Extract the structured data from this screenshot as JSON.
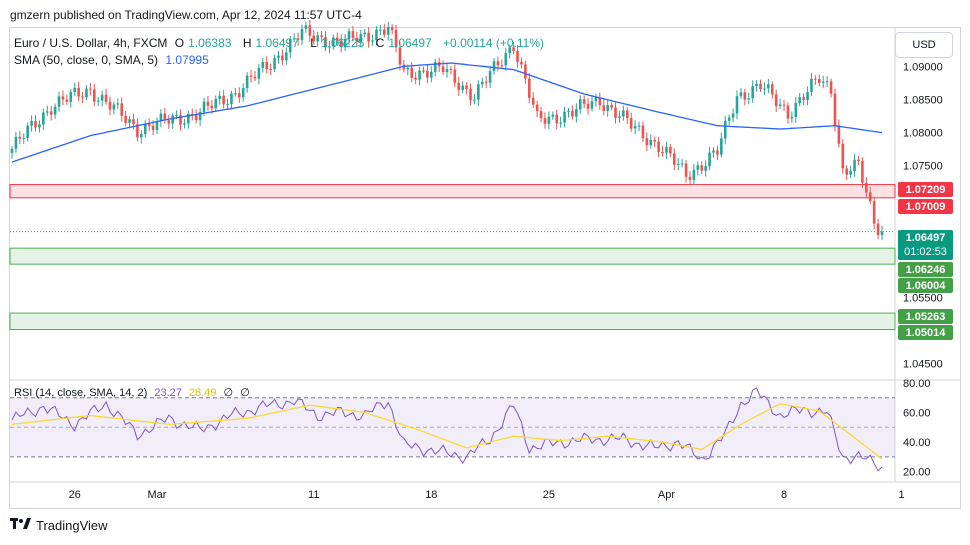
{
  "header": {
    "publisher": "gmzern published on TradingView.com, Apr 12, 2024 11:57 UTC-4"
  },
  "legend": {
    "symbol": "Euro / U.S. Dollar, 4h, FXCM",
    "o_label": "O",
    "o_value": "1.06383",
    "h_label": "H",
    "h_value": "1.06497",
    "l_label": "L",
    "l_value": "1.06225",
    "c_label": "C",
    "c_value": "1.06497",
    "change": "+0.00114 (+0.11%)",
    "sma_label": "SMA (50, close, 0, SMA, 5)",
    "sma_value": "1.07995",
    "rsi_label": "RSI (14, close, SMA, 14, 2)",
    "rsi_value": "23.27",
    "rsi_ma_value": "28.49",
    "rsi_extra1": "∅",
    "rsi_extra2": "∅"
  },
  "currency_button": "USD",
  "price_labels": {
    "current_price": "1.06497",
    "countdown": "01:02:53",
    "zone_red_top": "1.07209",
    "zone_red_bottom": "1.07009",
    "zone_green1_top": "1.06246",
    "zone_green1_bottom": "1.06004",
    "zone_green2_top": "1.05263",
    "zone_green2_bottom": "1.05014"
  },
  "colors": {
    "up": "#26a69a",
    "down": "#ef5350",
    "sma": "#2962ff",
    "rsi": "#7e57c2",
    "rsi_ma": "#fdd835",
    "zone_red": "#f23645",
    "zone_green": "#4caf50"
  },
  "footer": {
    "brand": "TradingView",
    "logo_icon": "tradingview-logo-icon"
  },
  "chart_data": [
    {
      "type": "candlestick",
      "title": "Euro / U.S. Dollar, 4h, FXCM",
      "y_axis_ticks": [
        "1.09000",
        "1.08500",
        "1.08000",
        "1.07500",
        "1.05500",
        "1.04500"
      ],
      "ylim": [
        1.0428,
        1.0958
      ],
      "x_tick_labels": [
        "26",
        "Mar",
        "11",
        "18",
        "25",
        "Apr",
        "8",
        "1"
      ],
      "x_tick_index": [
        16,
        37,
        77,
        107,
        137,
        167,
        197,
        227
      ],
      "n_bars": 223,
      "key_closes": [
        {
          "i": 0,
          "c": 1.0775
        },
        {
          "i": 10,
          "c": 1.084
        },
        {
          "i": 20,
          "c": 1.0865
        },
        {
          "i": 32,
          "c": 1.0805
        },
        {
          "i": 48,
          "c": 1.083
        },
        {
          "i": 57,
          "c": 1.086
        },
        {
          "i": 66,
          "c": 1.0905
        },
        {
          "i": 74,
          "c": 1.095
        },
        {
          "i": 84,
          "c": 1.0935
        },
        {
          "i": 96,
          "c": 1.0958
        },
        {
          "i": 100,
          "c": 1.089
        },
        {
          "i": 110,
          "c": 1.0895
        },
        {
          "i": 118,
          "c": 1.0855
        },
        {
          "i": 128,
          "c": 1.0935
        },
        {
          "i": 134,
          "c": 1.0818
        },
        {
          "i": 143,
          "c": 1.083
        },
        {
          "i": 150,
          "c": 1.085
        },
        {
          "i": 158,
          "c": 1.081
        },
        {
          "i": 165,
          "c": 1.078
        },
        {
          "i": 172,
          "c": 1.0735
        },
        {
          "i": 180,
          "c": 1.077
        },
        {
          "i": 185,
          "c": 1.0855
        },
        {
          "i": 191,
          "c": 1.087
        },
        {
          "i": 198,
          "c": 1.083
        },
        {
          "i": 206,
          "c": 1.088
        },
        {
          "i": 209,
          "c": 1.0865
        },
        {
          "i": 212,
          "c": 1.0742
        },
        {
          "i": 216,
          "c": 1.0748
        },
        {
          "i": 220,
          "c": 1.0665
        },
        {
          "i": 222,
          "c": 1.06497
        }
      ],
      "sma": [
        {
          "i": 0,
          "v": 1.0755
        },
        {
          "i": 20,
          "v": 1.0795
        },
        {
          "i": 40,
          "v": 1.082
        },
        {
          "i": 60,
          "v": 1.084
        },
        {
          "i": 80,
          "v": 1.087
        },
        {
          "i": 100,
          "v": 1.09
        },
        {
          "i": 112,
          "v": 1.0905
        },
        {
          "i": 128,
          "v": 1.0895
        },
        {
          "i": 146,
          "v": 1.0858
        },
        {
          "i": 164,
          "v": 1.0832
        },
        {
          "i": 180,
          "v": 1.081
        },
        {
          "i": 196,
          "v": 1.0805
        },
        {
          "i": 210,
          "v": 1.081
        },
        {
          "i": 222,
          "v": 1.07995
        }
      ],
      "zones": [
        {
          "name": "resistance",
          "color": "red",
          "top": 1.07209,
          "bottom": 1.07009
        },
        {
          "name": "support-1",
          "color": "green",
          "top": 1.06246,
          "bottom": 1.06004
        },
        {
          "name": "support-2",
          "color": "green",
          "top": 1.05263,
          "bottom": 1.05014
        }
      ],
      "last_price": 1.06497
    },
    {
      "type": "line",
      "title": "RSI (14, close, SMA, 14, 2)",
      "y_axis_ticks": [
        "80.00",
        "60.00",
        "40.00",
        "20.00"
      ],
      "ylim": [
        13,
        82
      ],
      "upper_band": 70,
      "middle_band": 50,
      "lower_band": 30,
      "series": [
        {
          "name": "RSI",
          "points": [
            {
              "i": 0,
              "v": 55
            },
            {
              "i": 8,
              "v": 64
            },
            {
              "i": 16,
              "v": 52
            },
            {
              "i": 24,
              "v": 66
            },
            {
              "i": 32,
              "v": 45
            },
            {
              "i": 40,
              "v": 56
            },
            {
              "i": 48,
              "v": 48
            },
            {
              "i": 56,
              "v": 58
            },
            {
              "i": 64,
              "v": 64
            },
            {
              "i": 72,
              "v": 68
            },
            {
              "i": 78,
              "v": 58
            },
            {
              "i": 84,
              "v": 60
            },
            {
              "i": 90,
              "v": 58
            },
            {
              "i": 96,
              "v": 68
            },
            {
              "i": 100,
              "v": 38
            },
            {
              "i": 108,
              "v": 34
            },
            {
              "i": 116,
              "v": 30
            },
            {
              "i": 122,
              "v": 42
            },
            {
              "i": 128,
              "v": 65
            },
            {
              "i": 132,
              "v": 36
            },
            {
              "i": 140,
              "v": 40
            },
            {
              "i": 148,
              "v": 42
            },
            {
              "i": 156,
              "v": 42
            },
            {
              "i": 164,
              "v": 36
            },
            {
              "i": 170,
              "v": 40
            },
            {
              "i": 176,
              "v": 28
            },
            {
              "i": 182,
              "v": 45
            },
            {
              "i": 186,
              "v": 66
            },
            {
              "i": 190,
              "v": 74
            },
            {
              "i": 196,
              "v": 58
            },
            {
              "i": 202,
              "v": 62
            },
            {
              "i": 208,
              "v": 60
            },
            {
              "i": 212,
              "v": 30
            },
            {
              "i": 216,
              "v": 30
            },
            {
              "i": 220,
              "v": 26
            },
            {
              "i": 222,
              "v": 23.27
            }
          ]
        },
        {
          "name": "RSI-based MA",
          "points": [
            {
              "i": 0,
              "v": 52
            },
            {
              "i": 20,
              "v": 58
            },
            {
              "i": 40,
              "v": 52
            },
            {
              "i": 60,
              "v": 56
            },
            {
              "i": 76,
              "v": 65
            },
            {
              "i": 90,
              "v": 60
            },
            {
              "i": 104,
              "v": 48
            },
            {
              "i": 116,
              "v": 36
            },
            {
              "i": 128,
              "v": 44
            },
            {
              "i": 140,
              "v": 41
            },
            {
              "i": 152,
              "v": 44
            },
            {
              "i": 166,
              "v": 40
            },
            {
              "i": 176,
              "v": 35
            },
            {
              "i": 186,
              "v": 52
            },
            {
              "i": 196,
              "v": 66
            },
            {
              "i": 206,
              "v": 61
            },
            {
              "i": 214,
              "v": 45
            },
            {
              "i": 222,
              "v": 28.49
            }
          ]
        }
      ]
    }
  ]
}
